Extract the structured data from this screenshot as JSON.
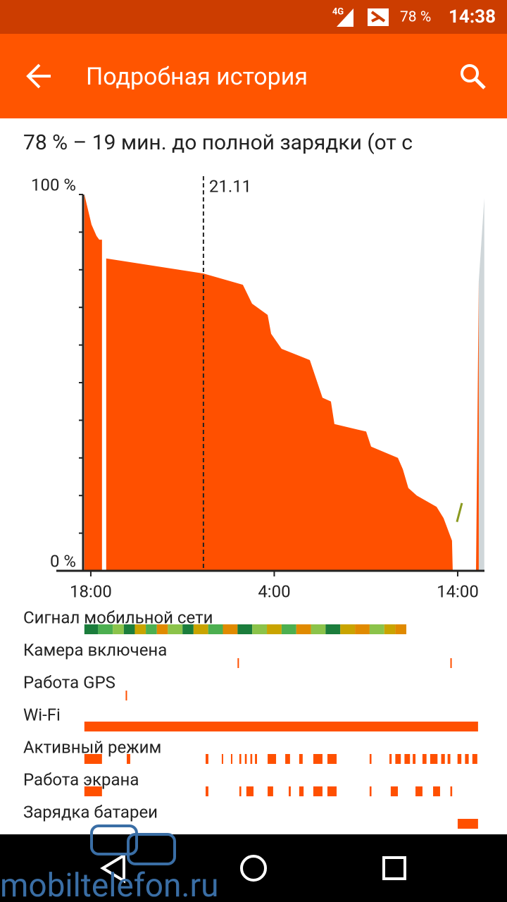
{
  "status_bar": {
    "network": "4G",
    "battery": "78 %",
    "time": "14:38"
  },
  "app_bar": {
    "title": "Подробная история"
  },
  "summary": "78 % – 19 мин. до полной зарядки (от с",
  "chart": {
    "type": "area",
    "xlim": [
      -0.42,
      21.46
    ],
    "ylim": [
      0,
      100
    ],
    "yticks": [
      {
        "value": 0,
        "label": "0 %"
      },
      {
        "value": 100,
        "label": "100 %"
      }
    ],
    "yminor": [
      10,
      20,
      30,
      40,
      50,
      60,
      70,
      80,
      90
    ],
    "xticks": [
      {
        "value": 0,
        "label": "18:00"
      },
      {
        "value": 10,
        "label": "4:00"
      },
      {
        "value": 20,
        "label": "14:00"
      }
    ],
    "date_marker": {
      "value": 6.14,
      "label": "21.11"
    },
    "series": [
      {
        "color": "#ff5000",
        "x": [
          -0.35,
          0.04,
          0.31,
          0.46,
          0.61,
          null,
          0.84,
          6.14,
          8.29,
          8.79,
          9.64,
          9.83,
          10.4,
          11.94,
          12.63,
          13.09,
          13.28,
          15.01,
          15.28,
          16.74,
          17.01,
          17.31,
          17.77,
          18.85,
          19.23,
          19.69,
          19.73
        ],
        "values": [
          100,
          92,
          89,
          88,
          88,
          null,
          83,
          79,
          76,
          71,
          68,
          63,
          59,
          56,
          46,
          45,
          39,
          37,
          33,
          30,
          27,
          22,
          20,
          17,
          14,
          8,
          0
        ]
      },
      {
        "color": "#ff5000",
        "x": [
          21.0,
          21.15
        ],
        "values": [
          0,
          77
        ]
      },
      {
        "color": "#cfd6d9",
        "x": [
          21.15,
          21.45
        ],
        "values": [
          77,
          99
        ]
      }
    ],
    "charge_line": {
      "color": "#8a9a20",
      "x": [
        19.96,
        20.23
      ],
      "values": [
        13,
        18
      ]
    }
  },
  "timelines": [
    {
      "label": "Сигнал мобильной сети",
      "segments": [
        [
          -0.35,
          0.4,
          "#1b7d3c"
        ],
        [
          0.4,
          1.2,
          "#4caf50"
        ],
        [
          1.2,
          1.8,
          "#8bc34a"
        ],
        [
          1.8,
          2.4,
          "#1b7d3c"
        ],
        [
          2.4,
          3.0,
          "#c9a400"
        ],
        [
          3.0,
          3.6,
          "#4caf50"
        ],
        [
          3.6,
          4.2,
          "#e08a00"
        ],
        [
          4.2,
          5.0,
          "#8bc34a"
        ],
        [
          5.0,
          5.6,
          "#1b7d3c"
        ],
        [
          5.6,
          6.4,
          "#c9a400"
        ],
        [
          6.4,
          7.2,
          "#4caf50"
        ],
        [
          7.2,
          8.0,
          "#e08a00"
        ],
        [
          8.0,
          8.8,
          "#1b7d3c"
        ],
        [
          8.8,
          9.6,
          "#8bc34a"
        ],
        [
          9.6,
          10.4,
          "#c9a400"
        ],
        [
          10.4,
          11.2,
          "#4caf50"
        ],
        [
          11.2,
          12.0,
          "#e08a00"
        ],
        [
          12.0,
          12.8,
          "#8bc34a"
        ],
        [
          12.8,
          13.6,
          "#1b7d3c"
        ],
        [
          13.6,
          14.4,
          "#c9a400"
        ],
        [
          14.4,
          15.2,
          "#e08a00"
        ],
        [
          15.2,
          16.0,
          "#8bc34a"
        ],
        [
          16.0,
          16.6,
          "#c9a400"
        ],
        [
          16.6,
          17.2,
          "#e08a00"
        ]
      ]
    },
    {
      "label": "Камера включена",
      "segments": [
        [
          8.0,
          8.06
        ],
        [
          19.6,
          19.66
        ]
      ]
    },
    {
      "label": "Работа GPS",
      "segments": [
        [
          1.9,
          1.96
        ]
      ]
    },
    {
      "label": "Wi-Fi",
      "segments": [
        [
          -0.35,
          21.11
        ]
      ]
    },
    {
      "label": "Активный режим",
      "segments": [
        [
          -0.35,
          0.61
        ],
        [
          1.96,
          2.15
        ],
        [
          6.26,
          6.41
        ],
        [
          7.14,
          7.2
        ],
        [
          7.64,
          7.7
        ],
        [
          8.1,
          8.2
        ],
        [
          8.4,
          8.5
        ],
        [
          8.7,
          8.8
        ],
        [
          8.95,
          9.06
        ],
        [
          9.64,
          10.1
        ],
        [
          10.6,
          10.86
        ],
        [
          11.36,
          11.55
        ],
        [
          12.13,
          12.63
        ],
        [
          12.9,
          13.4
        ],
        [
          15.2,
          15.3
        ],
        [
          16.28,
          16.4
        ],
        [
          16.6,
          16.9
        ],
        [
          17.1,
          17.4
        ],
        [
          17.55,
          17.7
        ],
        [
          18.08,
          18.3
        ],
        [
          18.5,
          18.9
        ],
        [
          19.1,
          19.3
        ],
        [
          19.45,
          19.6
        ],
        [
          19.99,
          20.2
        ],
        [
          20.4,
          20.6
        ],
        [
          20.8,
          21.07
        ]
      ]
    },
    {
      "label": "Работа экрана",
      "segments": [
        [
          -0.35,
          0.61
        ],
        [
          6.26,
          6.41
        ],
        [
          8.1,
          8.2
        ],
        [
          8.48,
          8.87
        ],
        [
          9.64,
          9.94
        ],
        [
          10.79,
          10.9
        ],
        [
          11.36,
          11.6
        ],
        [
          12.13,
          12.63
        ],
        [
          12.9,
          13.4
        ],
        [
          15.2,
          15.3
        ],
        [
          16.35,
          16.74
        ],
        [
          17.7,
          18.08
        ],
        [
          18.66,
          19.04
        ],
        [
          19.6,
          19.7
        ]
      ]
    },
    {
      "label": "Зарядка батареи",
      "segments": [
        [
          20.0,
          21.11
        ]
      ]
    }
  ],
  "watermark": "mobiltelefon.ru"
}
